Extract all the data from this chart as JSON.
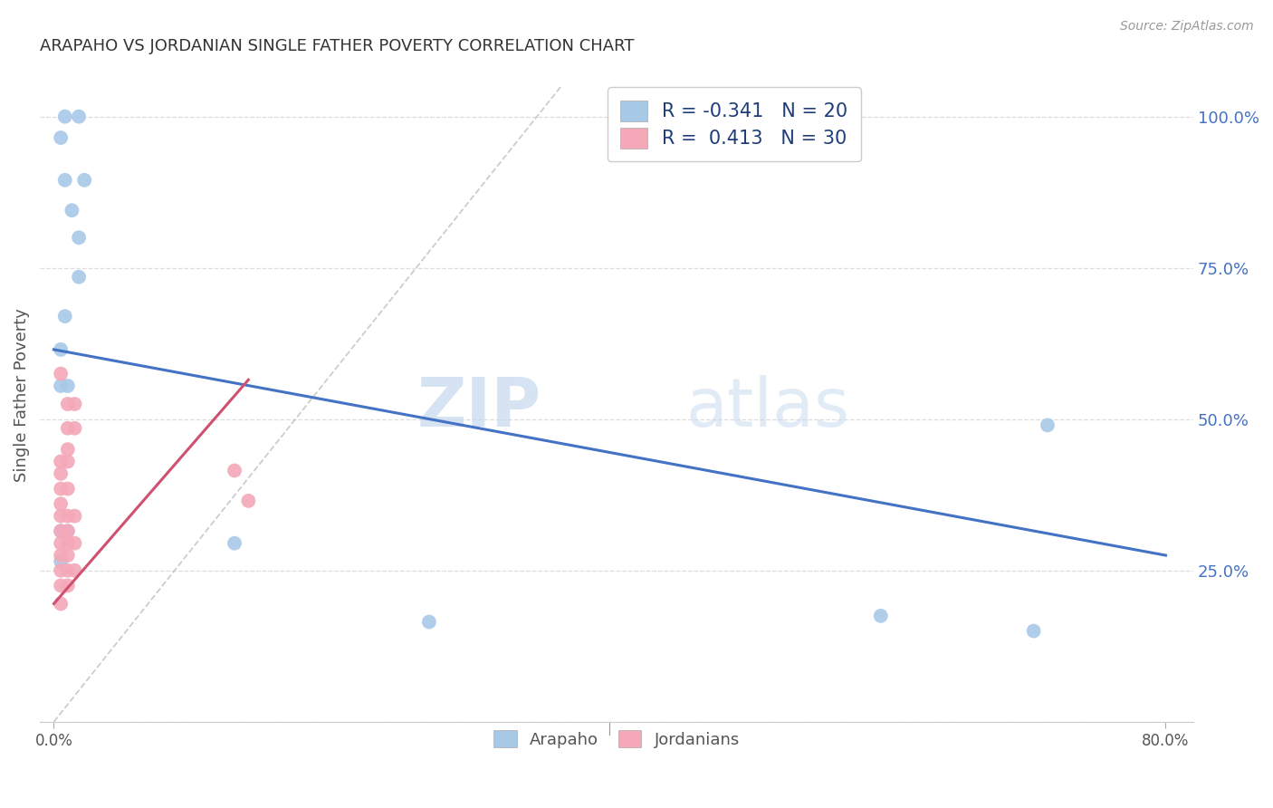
{
  "title": "ARAPAHO VS JORDANIAN SINGLE FATHER POVERTY CORRELATION CHART",
  "source": "Source: ZipAtlas.com",
  "ylabel": "Single Father Poverty",
  "yticks": [
    0.0,
    0.25,
    0.5,
    0.75,
    1.0
  ],
  "ytick_labels": [
    "",
    "25.0%",
    "50.0%",
    "75.0%",
    "100.0%"
  ],
  "xtick_positions": [
    0.0,
    0.8
  ],
  "xtick_labels": [
    "0.0%",
    "80.0%"
  ],
  "xlim": [
    -0.01,
    0.82
  ],
  "ylim": [
    0.0,
    1.08
  ],
  "legend_arapaho_R": "-0.341",
  "legend_arapaho_N": "20",
  "legend_jordanian_R": "0.413",
  "legend_jordanian_N": "30",
  "arapaho_color": "#A8C8E8",
  "jordanian_color": "#F4A8B8",
  "arapaho_line_color": "#4472C4",
  "jordanian_line_color": "#D05070",
  "arapaho_scatter": [
    [
      0.008,
      1.0
    ],
    [
      0.018,
      1.0
    ],
    [
      0.005,
      0.965
    ],
    [
      0.008,
      0.895
    ],
    [
      0.022,
      0.895
    ],
    [
      0.013,
      0.845
    ],
    [
      0.018,
      0.8
    ],
    [
      0.018,
      0.735
    ],
    [
      0.008,
      0.67
    ],
    [
      0.005,
      0.615
    ],
    [
      0.005,
      0.555
    ],
    [
      0.01,
      0.555
    ],
    [
      0.005,
      0.315
    ],
    [
      0.01,
      0.315
    ],
    [
      0.005,
      0.265
    ],
    [
      0.13,
      0.295
    ],
    [
      0.715,
      0.49
    ],
    [
      0.595,
      0.175
    ],
    [
      0.705,
      0.15
    ],
    [
      0.27,
      0.165
    ]
  ],
  "jordanian_scatter": [
    [
      0.005,
      0.575
    ],
    [
      0.01,
      0.525
    ],
    [
      0.015,
      0.525
    ],
    [
      0.01,
      0.485
    ],
    [
      0.015,
      0.485
    ],
    [
      0.01,
      0.45
    ],
    [
      0.005,
      0.43
    ],
    [
      0.01,
      0.43
    ],
    [
      0.005,
      0.41
    ],
    [
      0.005,
      0.385
    ],
    [
      0.01,
      0.385
    ],
    [
      0.005,
      0.36
    ],
    [
      0.005,
      0.34
    ],
    [
      0.01,
      0.34
    ],
    [
      0.015,
      0.34
    ],
    [
      0.005,
      0.315
    ],
    [
      0.01,
      0.315
    ],
    [
      0.005,
      0.295
    ],
    [
      0.01,
      0.295
    ],
    [
      0.015,
      0.295
    ],
    [
      0.005,
      0.275
    ],
    [
      0.01,
      0.275
    ],
    [
      0.005,
      0.25
    ],
    [
      0.01,
      0.25
    ],
    [
      0.015,
      0.25
    ],
    [
      0.005,
      0.225
    ],
    [
      0.01,
      0.225
    ],
    [
      0.005,
      0.195
    ],
    [
      0.13,
      0.415
    ],
    [
      0.14,
      0.365
    ]
  ],
  "arapaho_line": [
    [
      0.0,
      0.615
    ],
    [
      0.8,
      0.275
    ]
  ],
  "jordanian_line": [
    [
      0.0,
      0.195
    ],
    [
      0.14,
      0.565
    ]
  ],
  "diagonal_line": [
    [
      0.0,
      0.0
    ],
    [
      0.365,
      1.05
    ]
  ],
  "watermark_zip": "ZIP",
  "watermark_atlas": "atlas",
  "background_color": "#FFFFFF",
  "grid_color": "#DDDDDD"
}
